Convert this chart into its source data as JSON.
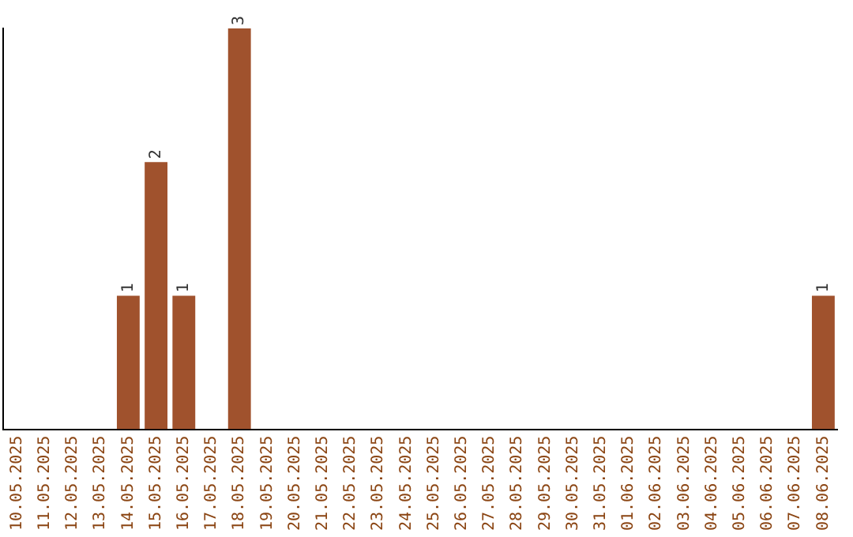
{
  "chart_data": {
    "type": "bar",
    "categories": [
      "10.05.2025",
      "11.05.2025",
      "12.05.2025",
      "13.05.2025",
      "14.05.2025",
      "15.05.2025",
      "16.05.2025",
      "17.05.2025",
      "18.05.2025",
      "19.05.2025",
      "20.05.2025",
      "21.05.2025",
      "22.05.2025",
      "23.05.2025",
      "24.05.2025",
      "25.05.2025",
      "26.05.2025",
      "27.05.2025",
      "28.05.2025",
      "29.05.2025",
      "30.05.2025",
      "31.05.2025",
      "01.06.2025",
      "02.06.2025",
      "03.06.2025",
      "04.06.2025",
      "05.06.2025",
      "06.06.2025",
      "07.06.2025",
      "08.06.2025"
    ],
    "values": [
      0,
      0,
      0,
      0,
      1,
      2,
      1,
      0,
      3,
      0,
      0,
      0,
      0,
      0,
      0,
      0,
      0,
      0,
      0,
      0,
      0,
      0,
      0,
      0,
      0,
      0,
      0,
      0,
      0,
      1
    ],
    "value_labels": [
      null,
      null,
      null,
      null,
      "1",
      "2",
      "1",
      null,
      "3",
      null,
      null,
      null,
      null,
      null,
      null,
      null,
      null,
      null,
      null,
      null,
      null,
      null,
      null,
      null,
      null,
      null,
      null,
      null,
      null,
      "1"
    ],
    "color": "#a0522d",
    "ylim": [
      0,
      3
    ],
    "tick_labels": "x",
    "grid": false,
    "legend": false
  }
}
